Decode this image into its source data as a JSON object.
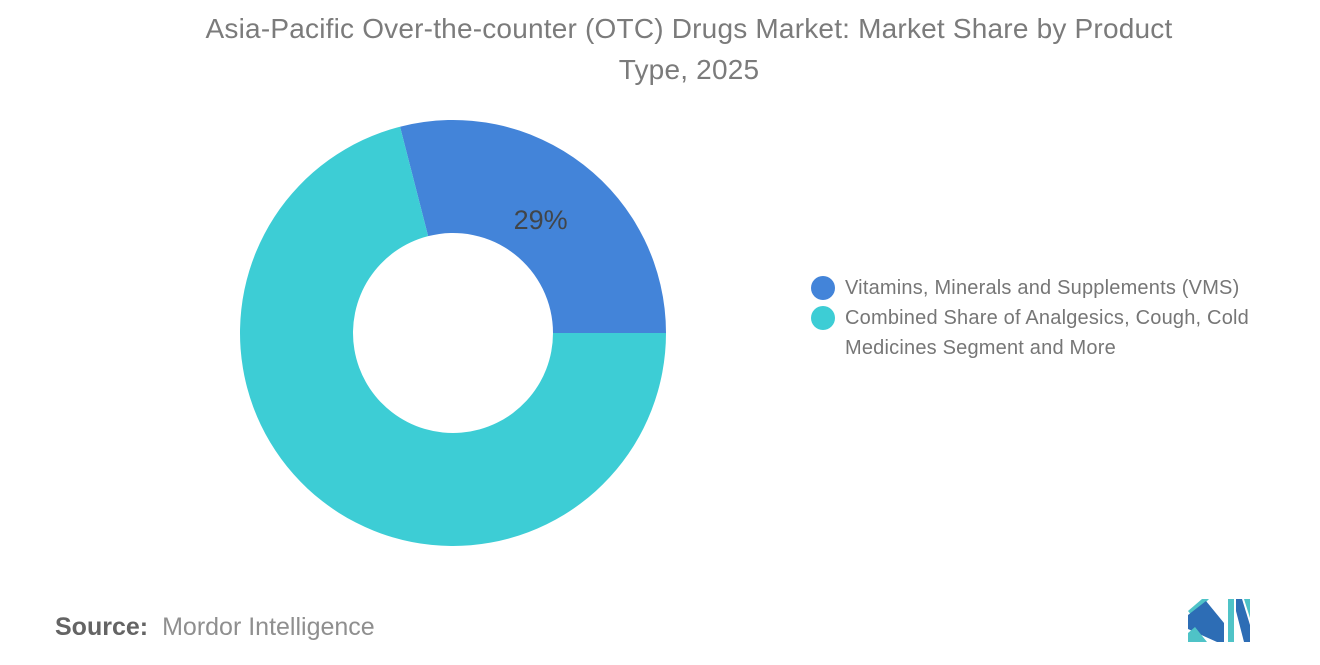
{
  "title": {
    "lines": [
      "Asia-Pacific Over-the-counter (OTC) Drugs Market: Market Share by Product",
      "Type, 2025"
    ],
    "color": "#7b7b7b"
  },
  "chart_data": {
    "type": "pie",
    "subtype": "donut",
    "title": "Asia-Pacific Over-the-counter (OTC) Drugs Market: Market Share by Product Type, 2025",
    "slices": [
      {
        "label": "Vitamins, Minerals and Supplements (VMS)",
        "value": 29,
        "percent_label": "29%",
        "color": "#4384d9"
      },
      {
        "label": "Combined Share of Analgesics, Cough, Cold Medicines Segment and More",
        "value": 71,
        "percent_label": "",
        "color": "#3dcdd5"
      }
    ],
    "total": 100,
    "start_angle_deg": -14.4,
    "inner_radius_ratio": 0.47,
    "legend_position": "right",
    "data_label_color": "#414549",
    "data_label_font_size": 27
  },
  "legend": {
    "items": [
      {
        "lines": [
          "Vitamins, Minerals and Supplements (VMS)"
        ],
        "color": "#4384d9"
      },
      {
        "lines": [
          "Combined Share of Analgesics, Cough, Cold",
          "Medicines Segment and More"
        ],
        "color": "#3dcdd5"
      }
    ],
    "text_color": "#767676"
  },
  "footer": {
    "source_label": "Source:",
    "source_text": "Mordor Intelligence"
  },
  "logo": {
    "name": "mordor-intelligence-logo",
    "teal": "#4fc3c7",
    "blue": "#2d6db5"
  }
}
